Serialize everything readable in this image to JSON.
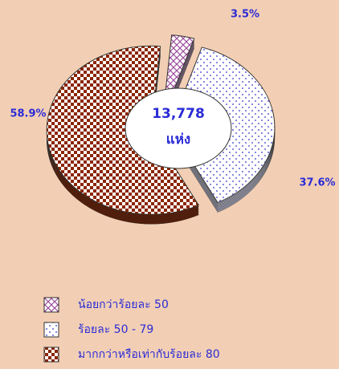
{
  "chart_data": {
    "type": "pie",
    "categories": [
      "น้อยกว่าร้อยละ 50",
      "ร้อยละ 50 - 79",
      "มากกว่าหรือเท่ากับร้อยละ 80"
    ],
    "values": [
      3.5,
      37.6,
      58.9
    ],
    "value_labels": [
      "3.5%",
      "37.6%",
      "58.9%"
    ],
    "colors": [
      "#9a4a9a",
      "#3333cc",
      "#8b2500"
    ],
    "center_label": [
      "13,778",
      "แห่ง"
    ],
    "legend": "bottom"
  }
}
